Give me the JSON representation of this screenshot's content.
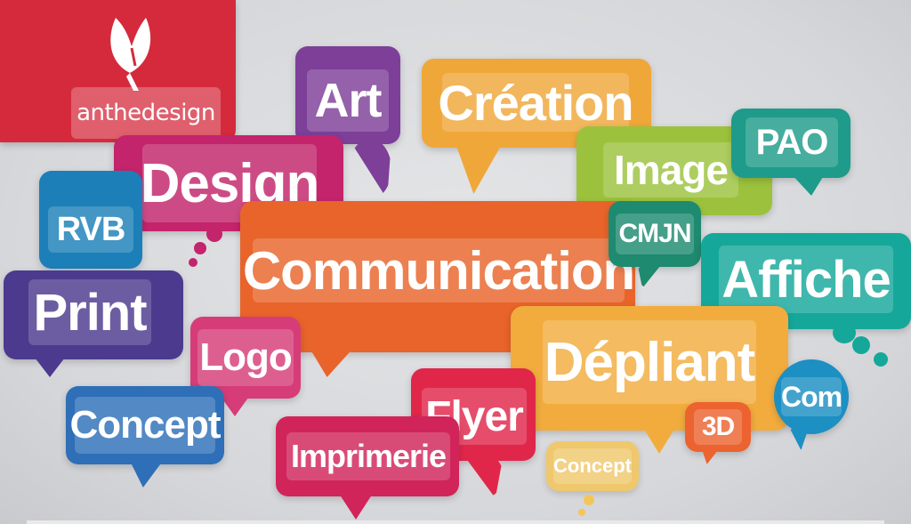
{
  "brand": {
    "name_light": "anthe",
    "name_strong": "design",
    "logo_icon": "leaf-icon",
    "color": "#d52a3c"
  },
  "bubbles": {
    "art": {
      "label": "Art",
      "color": "#7d3f98"
    },
    "creation": {
      "label": "Création",
      "color": "#f0a73a"
    },
    "pao": {
      "label": "PAO",
      "color": "#1e9b8a"
    },
    "design": {
      "label": "Design",
      "color": "#c3246b"
    },
    "image": {
      "label": "Image",
      "color": "#9cc23d"
    },
    "rvb": {
      "label": "RVB",
      "color": "#1c7fb8"
    },
    "cmjn": {
      "label": "CMJN",
      "color": "#1e8a70"
    },
    "communication": {
      "label": "Communication",
      "color": "#e8642a"
    },
    "affiche": {
      "label": "Affiche",
      "color": "#15a89a"
    },
    "print": {
      "label": "Print",
      "color": "#4c3a8e"
    },
    "logo": {
      "label": "Logo",
      "color": "#d63c78"
    },
    "depliant": {
      "label": "Dépliant",
      "color": "#f2ac3e"
    },
    "com": {
      "label": "Com",
      "color": "#1c8fc3"
    },
    "concept_blue": {
      "label": "Concept",
      "color": "#2e6fb7"
    },
    "flyer": {
      "label": "Flyer",
      "color": "#e0274a"
    },
    "imprimerie": {
      "label": "Imprimerie",
      "color": "#d1245a"
    },
    "three_d": {
      "label": "3D",
      "color": "#ec6330"
    },
    "concept_yellow": {
      "label": "Concept",
      "color": "#f4c65a"
    }
  }
}
